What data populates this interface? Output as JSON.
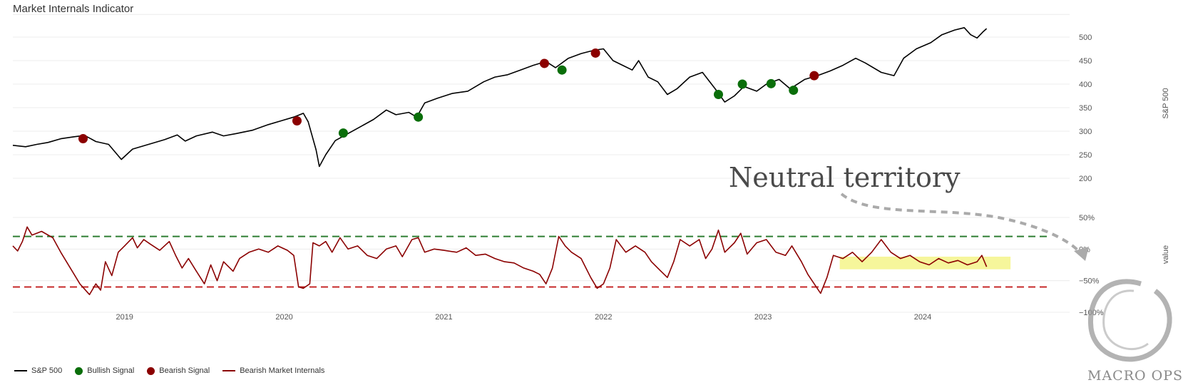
{
  "title": "Market Internals Indicator",
  "annotation_text": "Neutral territory",
  "watermark": "MACRO OPS",
  "chart_data": [
    {
      "type": "line",
      "panel": "top",
      "ylabel": "S&P 500",
      "ylim": [
        200,
        530
      ],
      "yticks": [
        "200",
        "250",
        "300",
        "350",
        "400",
        "450",
        "500"
      ],
      "xlim": [
        2018.3,
        2024.92
      ],
      "xticks": [
        "2019",
        "2020",
        "2021",
        "2022",
        "2023",
        "2024"
      ],
      "series": [
        {
          "name": "S&P 500",
          "color": "#000000",
          "points": [
            [
              2018.3,
              270
            ],
            [
              2018.38,
              267
            ],
            [
              2018.45,
              272
            ],
            [
              2018.52,
              276
            ],
            [
              2018.6,
              284
            ],
            [
              2018.68,
              288
            ],
            [
              2018.75,
              291
            ],
            [
              2018.82,
              278
            ],
            [
              2018.9,
              272
            ],
            [
              2018.98,
              240
            ],
            [
              2019.05,
              262
            ],
            [
              2019.15,
              272
            ],
            [
              2019.25,
              282
            ],
            [
              2019.33,
              292
            ],
            [
              2019.38,
              279
            ],
            [
              2019.45,
              290
            ],
            [
              2019.55,
              298
            ],
            [
              2019.62,
              290
            ],
            [
              2019.7,
              295
            ],
            [
              2019.8,
              302
            ],
            [
              2019.9,
              314
            ],
            [
              2019.98,
              322
            ],
            [
              2020.06,
              330
            ],
            [
              2020.12,
              338
            ],
            [
              2020.15,
              320
            ],
            [
              2020.2,
              260
            ],
            [
              2020.22,
              225
            ],
            [
              2020.26,
              250
            ],
            [
              2020.32,
              280
            ],
            [
              2020.4,
              295
            ],
            [
              2020.48,
              310
            ],
            [
              2020.56,
              325
            ],
            [
              2020.64,
              345
            ],
            [
              2020.7,
              335
            ],
            [
              2020.78,
              340
            ],
            [
              2020.83,
              330
            ],
            [
              2020.88,
              360
            ],
            [
              2020.96,
              370
            ],
            [
              2021.05,
              380
            ],
            [
              2021.15,
              385
            ],
            [
              2021.25,
              405
            ],
            [
              2021.32,
              415
            ],
            [
              2021.4,
              420
            ],
            [
              2021.48,
              430
            ],
            [
              2021.56,
              440
            ],
            [
              2021.64,
              448
            ],
            [
              2021.7,
              435
            ],
            [
              2021.78,
              455
            ],
            [
              2021.86,
              465
            ],
            [
              2021.94,
              472
            ],
            [
              2022.0,
              475
            ],
            [
              2022.06,
              450
            ],
            [
              2022.12,
              440
            ],
            [
              2022.18,
              430
            ],
            [
              2022.22,
              450
            ],
            [
              2022.28,
              415
            ],
            [
              2022.34,
              405
            ],
            [
              2022.4,
              378
            ],
            [
              2022.46,
              390
            ],
            [
              2022.54,
              415
            ],
            [
              2022.62,
              425
            ],
            [
              2022.7,
              390
            ],
            [
              2022.76,
              362
            ],
            [
              2022.82,
              375
            ],
            [
              2022.88,
              395
            ],
            [
              2022.96,
              385
            ],
            [
              2023.02,
              400
            ],
            [
              2023.1,
              410
            ],
            [
              2023.17,
              390
            ],
            [
              2023.26,
              410
            ],
            [
              2023.34,
              418
            ],
            [
              2023.42,
              428
            ],
            [
              2023.5,
              440
            ],
            [
              2023.58,
              455
            ],
            [
              2023.64,
              445
            ],
            [
              2023.74,
              425
            ],
            [
              2023.82,
              418
            ],
            [
              2023.88,
              455
            ],
            [
              2023.96,
              475
            ],
            [
              2024.05,
              488
            ],
            [
              2024.12,
              505
            ],
            [
              2024.2,
              515
            ],
            [
              2024.26,
              520
            ],
            [
              2024.3,
              505
            ],
            [
              2024.34,
              498
            ],
            [
              2024.38,
              512
            ],
            [
              2024.4,
              518
            ]
          ]
        }
      ],
      "signals": {
        "bullish_color": "#0a6e0a",
        "bearish_color": "#8b0000",
        "bullish": [
          [
            2020.37,
            296
          ],
          [
            2020.84,
            330
          ],
          [
            2021.74,
            430
          ],
          [
            2022.72,
            378
          ],
          [
            2022.87,
            400
          ],
          [
            2023.05,
            401
          ],
          [
            2023.19,
            387
          ]
        ],
        "bearish": [
          [
            2018.74,
            284
          ],
          [
            2020.08,
            322
          ],
          [
            2021.63,
            444
          ],
          [
            2021.95,
            466
          ],
          [
            2023.32,
            418
          ]
        ]
      }
    },
    {
      "type": "line",
      "panel": "bottom",
      "ylabel": "value",
      "ylim": [
        -100,
        50
      ],
      "yticks": [
        "−100%",
        "−50%",
        "0%",
        "50%"
      ],
      "xlim": [
        2018.3,
        2024.92
      ],
      "series": [
        {
          "name": "Bearish Market Internals",
          "color": "#8b0000",
          "points": [
            [
              2018.3,
              5
            ],
            [
              2018.33,
              -3
            ],
            [
              2018.36,
              12
            ],
            [
              2018.39,
              35
            ],
            [
              2018.42,
              22
            ],
            [
              2018.48,
              28
            ],
            [
              2018.55,
              18
            ],
            [
              2018.6,
              -5
            ],
            [
              2018.66,
              -30
            ],
            [
              2018.72,
              -55
            ],
            [
              2018.78,
              -72
            ],
            [
              2018.82,
              -55
            ],
            [
              2018.85,
              -65
            ],
            [
              2018.88,
              -20
            ],
            [
              2018.92,
              -42
            ],
            [
              2018.96,
              -5
            ],
            [
              2019.0,
              5
            ],
            [
              2019.05,
              18
            ],
            [
              2019.08,
              2
            ],
            [
              2019.12,
              15
            ],
            [
              2019.16,
              8
            ],
            [
              2019.22,
              -2
            ],
            [
              2019.28,
              12
            ],
            [
              2019.32,
              -10
            ],
            [
              2019.36,
              -30
            ],
            [
              2019.4,
              -15
            ],
            [
              2019.45,
              -35
            ],
            [
              2019.5,
              -55
            ],
            [
              2019.54,
              -25
            ],
            [
              2019.58,
              -50
            ],
            [
              2019.62,
              -20
            ],
            [
              2019.68,
              -35
            ],
            [
              2019.72,
              -15
            ],
            [
              2019.78,
              -5
            ],
            [
              2019.84,
              0
            ],
            [
              2019.9,
              -5
            ],
            [
              2019.96,
              5
            ],
            [
              2020.02,
              -2
            ],
            [
              2020.06,
              -10
            ],
            [
              2020.09,
              -60
            ],
            [
              2020.12,
              -62
            ],
            [
              2020.16,
              -55
            ],
            [
              2020.18,
              10
            ],
            [
              2020.22,
              5
            ],
            [
              2020.26,
              12
            ],
            [
              2020.3,
              -5
            ],
            [
              2020.35,
              18
            ],
            [
              2020.4,
              0
            ],
            [
              2020.46,
              5
            ],
            [
              2020.52,
              -10
            ],
            [
              2020.58,
              -15
            ],
            [
              2020.64,
              0
            ],
            [
              2020.7,
              5
            ],
            [
              2020.74,
              -12
            ],
            [
              2020.8,
              15
            ],
            [
              2020.84,
              18
            ],
            [
              2020.88,
              -5
            ],
            [
              2020.94,
              0
            ],
            [
              2021.0,
              -2
            ],
            [
              2021.08,
              -5
            ],
            [
              2021.14,
              2
            ],
            [
              2021.2,
              -10
            ],
            [
              2021.26,
              -8
            ],
            [
              2021.32,
              -15
            ],
            [
              2021.38,
              -20
            ],
            [
              2021.44,
              -22
            ],
            [
              2021.5,
              -30
            ],
            [
              2021.56,
              -35
            ],
            [
              2021.6,
              -40
            ],
            [
              2021.64,
              -55
            ],
            [
              2021.68,
              -30
            ],
            [
              2021.72,
              20
            ],
            [
              2021.76,
              5
            ],
            [
              2021.8,
              -5
            ],
            [
              2021.86,
              -15
            ],
            [
              2021.92,
              -45
            ],
            [
              2021.96,
              -62
            ],
            [
              2022.0,
              -55
            ],
            [
              2022.04,
              -30
            ],
            [
              2022.08,
              15
            ],
            [
              2022.14,
              -5
            ],
            [
              2022.2,
              5
            ],
            [
              2022.26,
              -5
            ],
            [
              2022.3,
              -20
            ],
            [
              2022.36,
              -35
            ],
            [
              2022.4,
              -45
            ],
            [
              2022.44,
              -20
            ],
            [
              2022.48,
              15
            ],
            [
              2022.54,
              5
            ],
            [
              2022.6,
              15
            ],
            [
              2022.64,
              -15
            ],
            [
              2022.68,
              0
            ],
            [
              2022.72,
              30
            ],
            [
              2022.76,
              -5
            ],
            [
              2022.82,
              10
            ],
            [
              2022.86,
              25
            ],
            [
              2022.9,
              -8
            ],
            [
              2022.96,
              10
            ],
            [
              2023.02,
              15
            ],
            [
              2023.08,
              -5
            ],
            [
              2023.14,
              -10
            ],
            [
              2023.18,
              5
            ],
            [
              2023.24,
              -20
            ],
            [
              2023.28,
              -40
            ],
            [
              2023.32,
              -55
            ],
            [
              2023.36,
              -70
            ],
            [
              2023.4,
              -45
            ],
            [
              2023.44,
              -10
            ],
            [
              2023.5,
              -15
            ],
            [
              2023.56,
              -5
            ],
            [
              2023.62,
              -20
            ],
            [
              2023.68,
              -5
            ],
            [
              2023.74,
              15
            ],
            [
              2023.8,
              -5
            ],
            [
              2023.86,
              -15
            ],
            [
              2023.92,
              -10
            ],
            [
              2023.98,
              -20
            ],
            [
              2024.04,
              -25
            ],
            [
              2024.1,
              -15
            ],
            [
              2024.16,
              -22
            ],
            [
              2024.22,
              -18
            ],
            [
              2024.28,
              -25
            ],
            [
              2024.34,
              -20
            ],
            [
              2024.37,
              -10
            ],
            [
              2024.4,
              -28
            ]
          ]
        }
      ],
      "thresholds": [
        {
          "value": 20,
          "color": "#2e7d32"
        },
        {
          "value": -60,
          "color": "#c62828"
        }
      ],
      "highlight": {
        "x0": 2023.48,
        "x1": 2024.55,
        "y0": -32,
        "y1": -12,
        "color": "#f5f58a"
      }
    }
  ],
  "legend": {
    "position": "bottom-left",
    "items": [
      {
        "label": "S&P 500",
        "type": "line",
        "color": "#000000"
      },
      {
        "label": "Bullish Signal",
        "type": "dot",
        "color": "#0a6e0a"
      },
      {
        "label": "Bearish Signal",
        "type": "dot",
        "color": "#8b0000"
      },
      {
        "label": "Bearish Market Internals",
        "type": "line",
        "color": "#8b0000"
      }
    ]
  }
}
